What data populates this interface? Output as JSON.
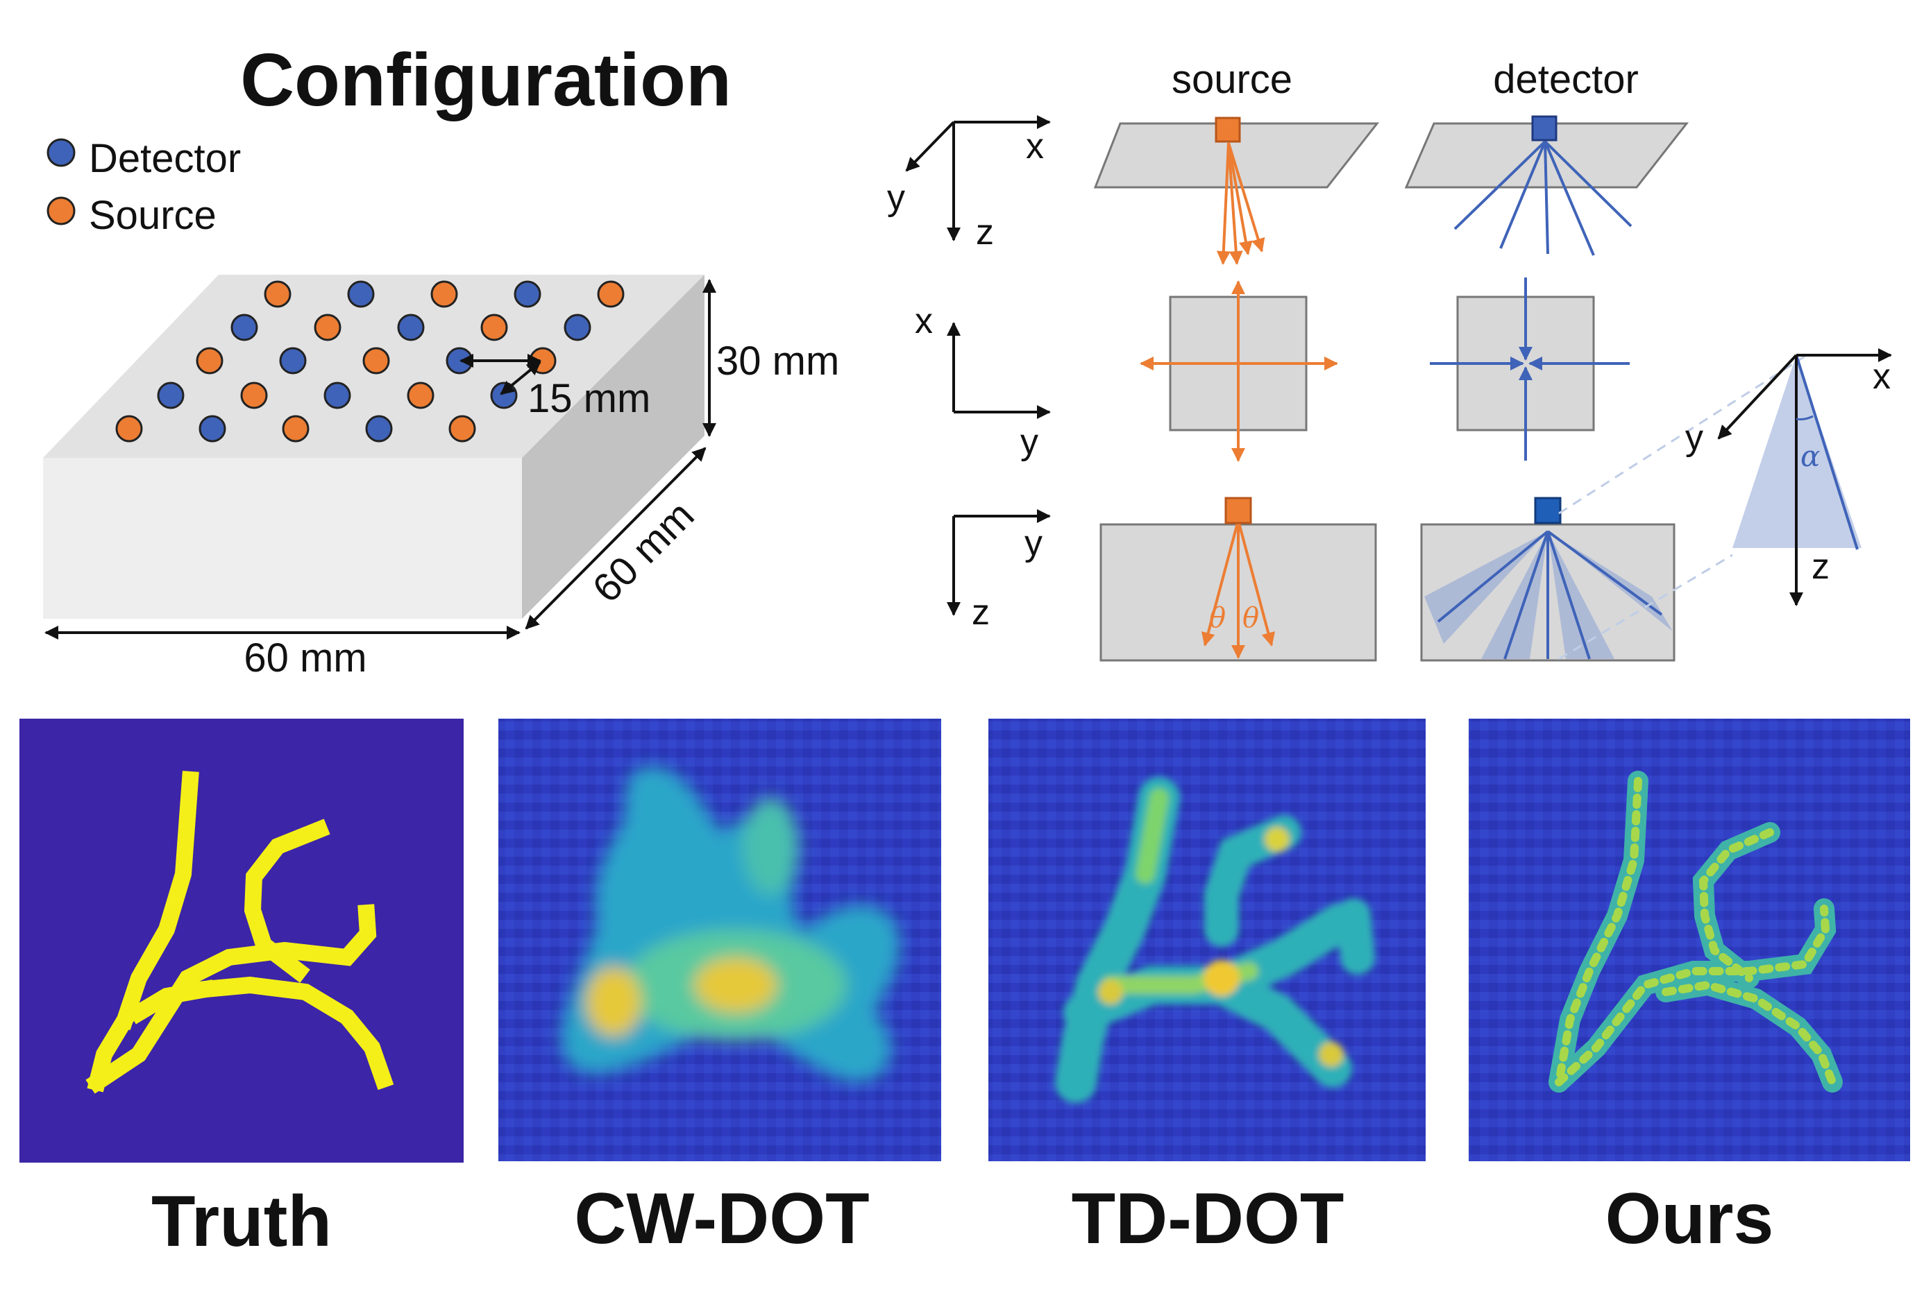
{
  "title": "Configuration",
  "legend": [
    {
      "label": "Detector",
      "color": "#3f63b8"
    },
    {
      "label": "Source",
      "color": "#ec7d33"
    }
  ],
  "dimensions": {
    "height": "30 mm",
    "depth": "60 mm",
    "width": "60 mm",
    "spacing": "15 mm"
  },
  "column_labels": {
    "source": "source",
    "detector": "detector"
  },
  "axis_labels": {
    "x": "x",
    "y": "y",
    "z": "z"
  },
  "angles": {
    "theta": "θ",
    "alpha": "α"
  },
  "colors": {
    "source": "#ec7d33",
    "detector": "#3f63b8",
    "box_top": "#e2e2e2",
    "box_front": "#eeeeee",
    "box_side": "#c2c2c2",
    "panel_bg": "#3c25a6",
    "vessel": "#f4ef18"
  },
  "panels": [
    {
      "label": "Truth"
    },
    {
      "label": "CW-DOT"
    },
    {
      "label": "TD-DOT"
    },
    {
      "label": "Ours"
    }
  ]
}
